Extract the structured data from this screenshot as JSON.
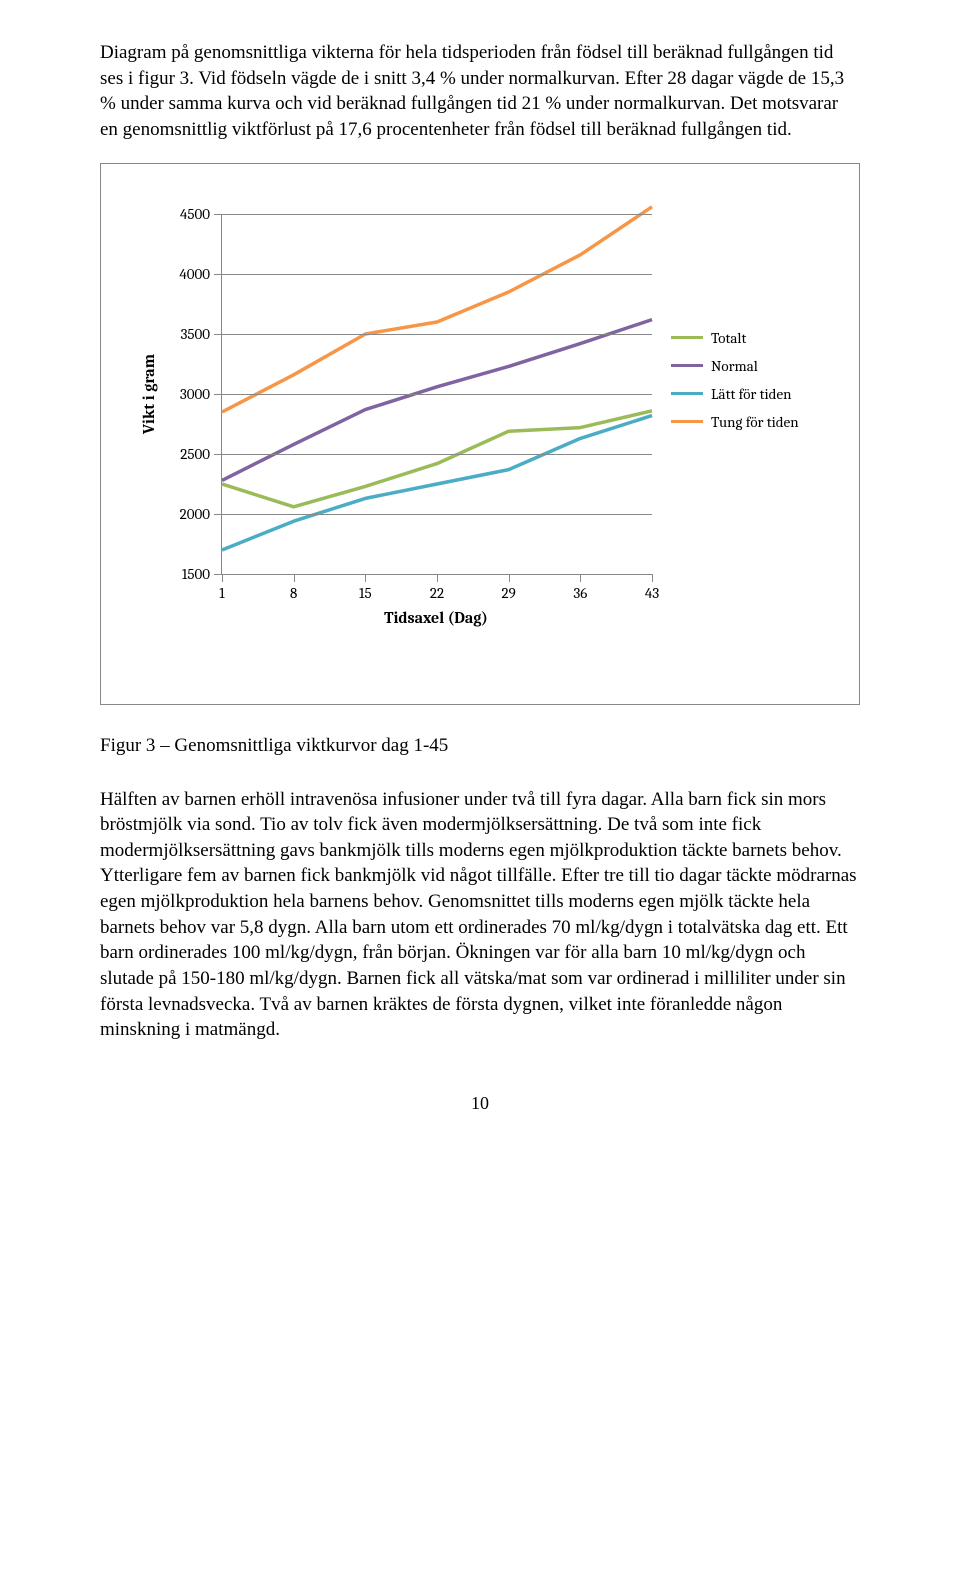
{
  "intro_paragraph": "Diagram på genomsnittliga vikterna för hela tidsperioden från födsel till beräknad fullgången tid ses i figur 3. Vid födseln vägde de i snitt 3,4 % under normalkurvan. Efter 28 dagar vägde de 15,3 % under samma kurva och vid beräknad fullgången tid 21 % under normalkurvan. Det motsvarar en genomsnittlig viktförlust på 17,6 procentenheter från födsel till beräknad fullgången tid.",
  "chart": {
    "type": "line",
    "y_axis_title": "Vikt i gram",
    "x_axis_title": "Tidsaxel (Dag)",
    "ylim": [
      1500,
      4500
    ],
    "xlim": [
      1,
      43
    ],
    "x_ticks": [
      1,
      8,
      15,
      22,
      29,
      36,
      43
    ],
    "y_ticks": [
      1500,
      2000,
      2500,
      3000,
      3500,
      4000,
      4500
    ],
    "grid_color": "#888888",
    "background_color": "#ffffff",
    "line_width": 3.5,
    "font_family": "Cambria, Georgia, serif",
    "tick_fontsize": 15,
    "title_fontsize": 16,
    "series": [
      {
        "name": "Totalt",
        "color": "#9bbb59",
        "x": [
          1,
          8,
          15,
          22,
          29,
          36,
          43
        ],
        "y": [
          2250,
          2060,
          2230,
          2420,
          2690,
          2720,
          2860
        ]
      },
      {
        "name": "Normal",
        "color": "#8064a2",
        "x": [
          1,
          8,
          15,
          22,
          29,
          36,
          43
        ],
        "y": [
          2280,
          2580,
          2870,
          3060,
          3230,
          3420,
          3620
        ]
      },
      {
        "name": "Lätt för tiden",
        "color": "#4bacc6",
        "x": [
          1,
          8,
          15,
          22,
          29,
          36,
          43
        ],
        "y": [
          1700,
          1940,
          2130,
          2250,
          2370,
          2630,
          2820
        ]
      },
      {
        "name": "Tung för tiden",
        "color": "#f79646",
        "x": [
          1,
          8,
          15,
          22,
          29,
          36,
          43
        ],
        "y": [
          2850,
          3160,
          3500,
          3600,
          3850,
          4160,
          4560
        ]
      }
    ]
  },
  "figure_caption": "Figur 3 – Genomsnittliga viktkurvor dag 1-45",
  "body_paragraph": "Hälften av barnen erhöll intravenösa infusioner under två till fyra dagar. Alla barn fick sin mors bröstmjölk via sond. Tio av tolv fick även modermjölksersättning. De två som inte fick modermjölksersättning gavs bankmjölk tills moderns egen mjölkproduktion täckte barnets behov. Ytterligare fem av barnen fick bankmjölk vid något tillfälle. Efter tre till tio dagar täckte mödrarnas egen mjölkproduktion hela barnens behov. Genomsnittet tills moderns egen mjölk täckte hela barnets behov var 5,8 dygn. Alla barn utom ett ordinerades 70 ml/kg/dygn i totalvätska dag ett. Ett barn ordinerades 100 ml/kg/dygn, från början. Ökningen var för alla barn 10 ml/kg/dygn och slutade på 150-180 ml/kg/dygn. Barnen fick all vätska/mat som var ordinerad i milliliter under sin första levnadsvecka. Två av barnen kräktes de första dygnen, vilket inte föranledde någon minskning i matmängd.",
  "page_number": "10"
}
